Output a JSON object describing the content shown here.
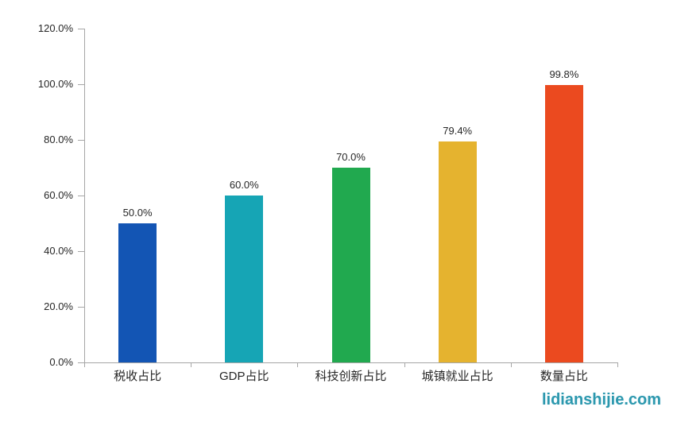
{
  "chart_data": {
    "type": "bar",
    "title": "",
    "xlabel": "",
    "ylabel": "",
    "categories": [
      "税收占比",
      "GDP占比",
      "科技创新占比",
      "城镇就业占比",
      "数量占比"
    ],
    "values": [
      50.0,
      60.0,
      70.0,
      79.4,
      99.8
    ],
    "data_labels": [
      "50.0%",
      "60.0%",
      "70.0%",
      "79.4%",
      "99.8%"
    ],
    "bar_colors": [
      "#1355B4",
      "#16A5B5",
      "#21A94F",
      "#E5B32F",
      "#EB4A1F"
    ],
    "ylim": [
      0,
      120
    ],
    "y_tick_step": 20,
    "y_tick_labels": [
      "0.0%",
      "20.0%",
      "40.0%",
      "60.0%",
      "80.0%",
      "100.0%",
      "120.0%"
    ],
    "grid": false,
    "legend": "none",
    "axis_color": "#A6A6A6",
    "label_color": "#262626"
  },
  "watermark": {
    "text": "lidianshijie.com",
    "color": "#2C98AE"
  }
}
